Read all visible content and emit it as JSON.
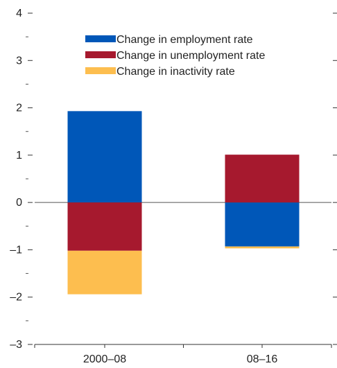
{
  "chart_data": {
    "type": "bar",
    "stacked": true,
    "categories": [
      "2000–08",
      "08–16"
    ],
    "series": [
      {
        "name": "Change in employment rate",
        "values": [
          1.93,
          -0.93
        ],
        "color": "#0057b8"
      },
      {
        "name": "Change in unemployment rate",
        "values": [
          -1.02,
          1.01
        ],
        "color": "#a6192e"
      },
      {
        "name": "Change in inactivity rate",
        "values": [
          -0.92,
          -0.04
        ],
        "color": "#fdbe4f"
      }
    ],
    "ylim": [
      -3,
      4
    ],
    "yticks": [
      -3,
      -2,
      -1,
      0,
      1,
      2,
      3,
      4
    ],
    "ytick_labels": [
      "–3",
      "–2",
      "–1",
      "0",
      "1",
      "2",
      "3",
      "4"
    ],
    "legend_position": "top-center",
    "grid": false,
    "title": "",
    "xlabel": "",
    "ylabel": ""
  }
}
